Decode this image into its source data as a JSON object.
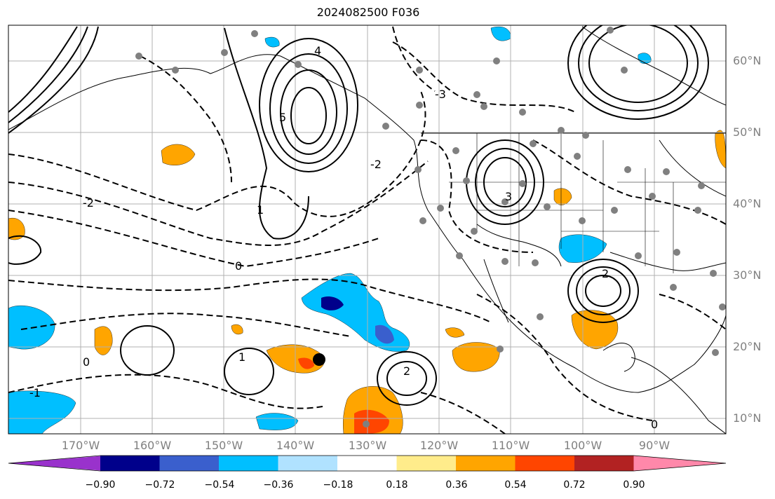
{
  "title": "2024082500 F036",
  "map": {
    "projection": "PlateCarree",
    "lon_range_deg": [
      -180,
      -80
    ],
    "lat_range_deg": [
      7,
      64
    ],
    "gridlines": true,
    "coastlines": true,
    "state_borders": true,
    "contour_style": "solid positive, dashed negative",
    "contour_labels": [
      "0",
      "1",
      "2",
      "3",
      "4",
      "5",
      "-1",
      "-2",
      "-3"
    ],
    "marker": {
      "label": "",
      "lon": -136.5,
      "lat": 18.3
    },
    "station_dots": "gray"
  },
  "lat_labels": [
    "60°N",
    "50°N",
    "40°N",
    "30°N",
    "20°N",
    "10°N"
  ],
  "lon_labels": [
    "170°W",
    "160°W",
    "150°W",
    "140°W",
    "130°W",
    "120°W",
    "110°W",
    "100°W",
    "90°W"
  ],
  "colorbar": {
    "ticks": [
      "−0.90",
      "−0.72",
      "−0.54",
      "−0.36",
      "−0.18",
      "0.18",
      "0.36",
      "0.54",
      "0.72",
      "0.90"
    ],
    "colors": [
      "#9932cc",
      "#00008b",
      "#3a5fcd",
      "#00bfff",
      "#b0e2ff",
      "#ffffff",
      "#ffec8b",
      "#ffa500",
      "#ff4500",
      "#b22222",
      "#ff88aa"
    ]
  }
}
